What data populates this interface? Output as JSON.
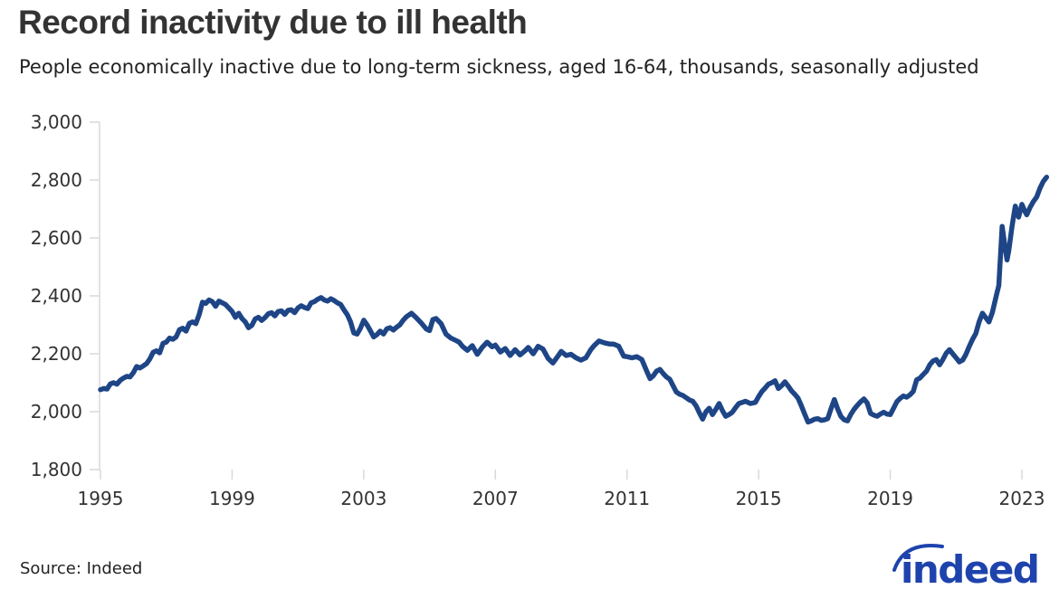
{
  "header": {
    "title": "Record inactivity due to ill health",
    "subtitle": "People economically inactive due to long-term sickness, aged 16-64, thousands, seasonally adjusted"
  },
  "footer": {
    "source": "Source: Indeed",
    "logo_text": "indeed"
  },
  "colors": {
    "line": "#1e4586",
    "axis": "#d9d9d9",
    "tick_label": "#333333",
    "logo": "#1e43ad"
  },
  "chart_data": {
    "type": "line",
    "title": "Record inactivity due to ill health",
    "subtitle": "People economically inactive due to long-term sickness, aged 16-64, thousands, seasonally adjusted",
    "grid": false,
    "legend": "none",
    "xlim": [
      1994.9,
      2024.2
    ],
    "ylim": [
      1800,
      3000
    ],
    "y_tick_values": [
      1800,
      2000,
      2200,
      2400,
      2600,
      2800,
      3000
    ],
    "y_tick_labels": [
      "1,800",
      "2,000",
      "2,200",
      "2,400",
      "2,600",
      "2,800",
      "3,000"
    ],
    "x_tick_values": [
      1995,
      1999,
      2003,
      2007,
      2011,
      2015,
      2019,
      2023
    ],
    "x_tick_labels": [
      "1995",
      "1999",
      "2003",
      "2007",
      "2011",
      "2015",
      "2019",
      "2023"
    ],
    "series": [
      {
        "name": "Economically inactive due to long-term sickness, aged 16-64 (thousands)",
        "points": [
          [
            1995,
            2076
          ],
          [
            1995.1,
            2080
          ],
          [
            1995.2,
            2078
          ],
          [
            1995.3,
            2096
          ],
          [
            1995.4,
            2100
          ],
          [
            1995.5,
            2095
          ],
          [
            1995.6,
            2108
          ],
          [
            1995.7,
            2116
          ],
          [
            1995.8,
            2122
          ],
          [
            1995.9,
            2120
          ],
          [
            1996,
            2135
          ],
          [
            1996.1,
            2156
          ],
          [
            1996.2,
            2151
          ],
          [
            1996.3,
            2158
          ],
          [
            1996.4,
            2166
          ],
          [
            1996.5,
            2182
          ],
          [
            1996.6,
            2205
          ],
          [
            1996.7,
            2210
          ],
          [
            1996.8,
            2203
          ],
          [
            1996.9,
            2236
          ],
          [
            1997,
            2240
          ],
          [
            1997.1,
            2254
          ],
          [
            1997.2,
            2250
          ],
          [
            1997.3,
            2258
          ],
          [
            1997.4,
            2283
          ],
          [
            1997.5,
            2288
          ],
          [
            1997.6,
            2278
          ],
          [
            1997.7,
            2305
          ],
          [
            1997.8,
            2310
          ],
          [
            1997.9,
            2304
          ],
          [
            1998,
            2336
          ],
          [
            1998.1,
            2378
          ],
          [
            1998.2,
            2374
          ],
          [
            1998.3,
            2386
          ],
          [
            1998.4,
            2380
          ],
          [
            1998.5,
            2364
          ],
          [
            1998.6,
            2382
          ],
          [
            1998.7,
            2376
          ],
          [
            1998.8,
            2370
          ],
          [
            1998.9,
            2358
          ],
          [
            1999,
            2346
          ],
          [
            1999.1,
            2326
          ],
          [
            1999.2,
            2340
          ],
          [
            1999.3,
            2322
          ],
          [
            1999.4,
            2310
          ],
          [
            1999.5,
            2290
          ],
          [
            1999.6,
            2298
          ],
          [
            1999.7,
            2320
          ],
          [
            1999.8,
            2326
          ],
          [
            1999.9,
            2315
          ],
          [
            2000,
            2325
          ],
          [
            2000.1,
            2338
          ],
          [
            2000.2,
            2342
          ],
          [
            2000.3,
            2331
          ],
          [
            2000.4,
            2346
          ],
          [
            2000.5,
            2348
          ],
          [
            2000.6,
            2336
          ],
          [
            2000.7,
            2350
          ],
          [
            2000.8,
            2352
          ],
          [
            2000.9,
            2342
          ],
          [
            2001,
            2358
          ],
          [
            2001.1,
            2366
          ],
          [
            2001.2,
            2360
          ],
          [
            2001.3,
            2356
          ],
          [
            2001.4,
            2376
          ],
          [
            2001.5,
            2380
          ],
          [
            2001.6,
            2388
          ],
          [
            2001.7,
            2394
          ],
          [
            2001.8,
            2386
          ],
          [
            2001.9,
            2382
          ],
          [
            2002,
            2390
          ],
          [
            2002.1,
            2384
          ],
          [
            2002.2,
            2376
          ],
          [
            2002.3,
            2370
          ],
          [
            2002.4,
            2352
          ],
          [
            2002.5,
            2335
          ],
          [
            2002.6,
            2310
          ],
          [
            2002.7,
            2272
          ],
          [
            2002.8,
            2268
          ],
          [
            2002.9,
            2288
          ],
          [
            2003,
            2316
          ],
          [
            2003.1,
            2300
          ],
          [
            2003.2,
            2280
          ],
          [
            2003.3,
            2258
          ],
          [
            2003.4,
            2266
          ],
          [
            2003.5,
            2278
          ],
          [
            2003.6,
            2268
          ],
          [
            2003.7,
            2286
          ],
          [
            2003.8,
            2290
          ],
          [
            2003.9,
            2282
          ],
          [
            2004,
            2292
          ],
          [
            2004.1,
            2300
          ],
          [
            2004.2,
            2316
          ],
          [
            2004.3,
            2328
          ],
          [
            2004.45,
            2340
          ],
          [
            2004.6,
            2324
          ],
          [
            2004.75,
            2306
          ],
          [
            2004.9,
            2286
          ],
          [
            2005,
            2280
          ],
          [
            2005.1,
            2318
          ],
          [
            2005.2,
            2322
          ],
          [
            2005.35,
            2304
          ],
          [
            2005.5,
            2268
          ],
          [
            2005.65,
            2254
          ],
          [
            2005.8,
            2246
          ],
          [
            2005.9,
            2240
          ],
          [
            2006,
            2226
          ],
          [
            2006.15,
            2212
          ],
          [
            2006.3,
            2228
          ],
          [
            2006.45,
            2198
          ],
          [
            2006.6,
            2222
          ],
          [
            2006.75,
            2240
          ],
          [
            2006.9,
            2224
          ],
          [
            2007,
            2230
          ],
          [
            2007.15,
            2206
          ],
          [
            2007.3,
            2218
          ],
          [
            2007.45,
            2194
          ],
          [
            2007.6,
            2214
          ],
          [
            2007.75,
            2196
          ],
          [
            2007.9,
            2210
          ],
          [
            2008,
            2222
          ],
          [
            2008.15,
            2200
          ],
          [
            2008.3,
            2226
          ],
          [
            2008.45,
            2216
          ],
          [
            2008.6,
            2184
          ],
          [
            2008.75,
            2168
          ],
          [
            2008.9,
            2192
          ],
          [
            2009,
            2208
          ],
          [
            2009.15,
            2194
          ],
          [
            2009.3,
            2198
          ],
          [
            2009.45,
            2186
          ],
          [
            2009.6,
            2178
          ],
          [
            2009.75,
            2186
          ],
          [
            2009.9,
            2214
          ],
          [
            2010,
            2228
          ],
          [
            2010.15,
            2244
          ],
          [
            2010.3,
            2238
          ],
          [
            2010.45,
            2234
          ],
          [
            2010.6,
            2233
          ],
          [
            2010.75,
            2226
          ],
          [
            2010.9,
            2192
          ],
          [
            2011,
            2190
          ],
          [
            2011.15,
            2186
          ],
          [
            2011.3,
            2190
          ],
          [
            2011.45,
            2180
          ],
          [
            2011.6,
            2140
          ],
          [
            2011.7,
            2114
          ],
          [
            2011.8,
            2124
          ],
          [
            2011.9,
            2140
          ],
          [
            2012,
            2146
          ],
          [
            2012.1,
            2132
          ],
          [
            2012.2,
            2120
          ],
          [
            2012.3,
            2112
          ],
          [
            2012.4,
            2090
          ],
          [
            2012.5,
            2068
          ],
          [
            2012.6,
            2060
          ],
          [
            2012.7,
            2056
          ],
          [
            2012.8,
            2048
          ],
          [
            2012.9,
            2040
          ],
          [
            2013,
            2036
          ],
          [
            2013.1,
            2020
          ],
          [
            2013.2,
            1996
          ],
          [
            2013.3,
            1974
          ],
          [
            2013.4,
            2000
          ],
          [
            2013.5,
            2012
          ],
          [
            2013.6,
            1990
          ],
          [
            2013.7,
            2008
          ],
          [
            2013.8,
            2028
          ],
          [
            2013.9,
            2004
          ],
          [
            2014,
            1984
          ],
          [
            2014.1,
            1990
          ],
          [
            2014.2,
            1998
          ],
          [
            2014.3,
            2014
          ],
          [
            2014.4,
            2028
          ],
          [
            2014.5,
            2032
          ],
          [
            2014.6,
            2036
          ],
          [
            2014.75,
            2028
          ],
          [
            2014.9,
            2032
          ],
          [
            2015,
            2052
          ],
          [
            2015.1,
            2070
          ],
          [
            2015.2,
            2082
          ],
          [
            2015.3,
            2095
          ],
          [
            2015.4,
            2100
          ],
          [
            2015.5,
            2107
          ],
          [
            2015.6,
            2080
          ],
          [
            2015.7,
            2090
          ],
          [
            2015.8,
            2103
          ],
          [
            2015.9,
            2088
          ],
          [
            2016,
            2072
          ],
          [
            2016.1,
            2060
          ],
          [
            2016.2,
            2046
          ],
          [
            2016.3,
            2020
          ],
          [
            2016.4,
            1992
          ],
          [
            2016.5,
            1964
          ],
          [
            2016.6,
            1968
          ],
          [
            2016.7,
            1974
          ],
          [
            2016.8,
            1976
          ],
          [
            2016.9,
            1970
          ],
          [
            2017,
            1972
          ],
          [
            2017.1,
            1976
          ],
          [
            2017.2,
            2010
          ],
          [
            2017.3,
            2042
          ],
          [
            2017.4,
            2010
          ],
          [
            2017.5,
            1984
          ],
          [
            2017.6,
            1972
          ],
          [
            2017.7,
            1968
          ],
          [
            2017.8,
            1990
          ],
          [
            2017.9,
            2008
          ],
          [
            2018,
            2022
          ],
          [
            2018.1,
            2034
          ],
          [
            2018.2,
            2044
          ],
          [
            2018.3,
            2030
          ],
          [
            2018.4,
            1994
          ],
          [
            2018.5,
            1988
          ],
          [
            2018.6,
            1984
          ],
          [
            2018.7,
            1992
          ],
          [
            2018.8,
            1998
          ],
          [
            2018.9,
            1992
          ],
          [
            2019,
            1990
          ],
          [
            2019.1,
            2012
          ],
          [
            2019.2,
            2034
          ],
          [
            2019.3,
            2046
          ],
          [
            2019.4,
            2054
          ],
          [
            2019.5,
            2050
          ],
          [
            2019.6,
            2058
          ],
          [
            2019.7,
            2070
          ],
          [
            2019.8,
            2110
          ],
          [
            2019.9,
            2116
          ],
          [
            2020,
            2128
          ],
          [
            2020.1,
            2140
          ],
          [
            2020.2,
            2162
          ],
          [
            2020.3,
            2175
          ],
          [
            2020.4,
            2180
          ],
          [
            2020.5,
            2162
          ],
          [
            2020.6,
            2180
          ],
          [
            2020.7,
            2202
          ],
          [
            2020.8,
            2214
          ],
          [
            2020.9,
            2200
          ],
          [
            2021,
            2186
          ],
          [
            2021.1,
            2172
          ],
          [
            2021.2,
            2178
          ],
          [
            2021.3,
            2198
          ],
          [
            2021.4,
            2225
          ],
          [
            2021.5,
            2250
          ],
          [
            2021.6,
            2270
          ],
          [
            2021.7,
            2310
          ],
          [
            2021.8,
            2340
          ],
          [
            2021.9,
            2325
          ],
          [
            2022,
            2310
          ],
          [
            2022.1,
            2342
          ],
          [
            2022.2,
            2390
          ],
          [
            2022.3,
            2436
          ],
          [
            2022.4,
            2640
          ],
          [
            2022.5,
            2560
          ],
          [
            2022.55,
            2524
          ],
          [
            2022.6,
            2556
          ],
          [
            2022.7,
            2640
          ],
          [
            2022.8,
            2710
          ],
          [
            2022.9,
            2672
          ],
          [
            2023,
            2716
          ],
          [
            2023.1,
            2690
          ],
          [
            2023.15,
            2680
          ],
          [
            2023.25,
            2706
          ],
          [
            2023.35,
            2726
          ],
          [
            2023.45,
            2742
          ],
          [
            2023.55,
            2772
          ],
          [
            2023.65,
            2795
          ],
          [
            2023.75,
            2810
          ]
        ]
      }
    ]
  }
}
